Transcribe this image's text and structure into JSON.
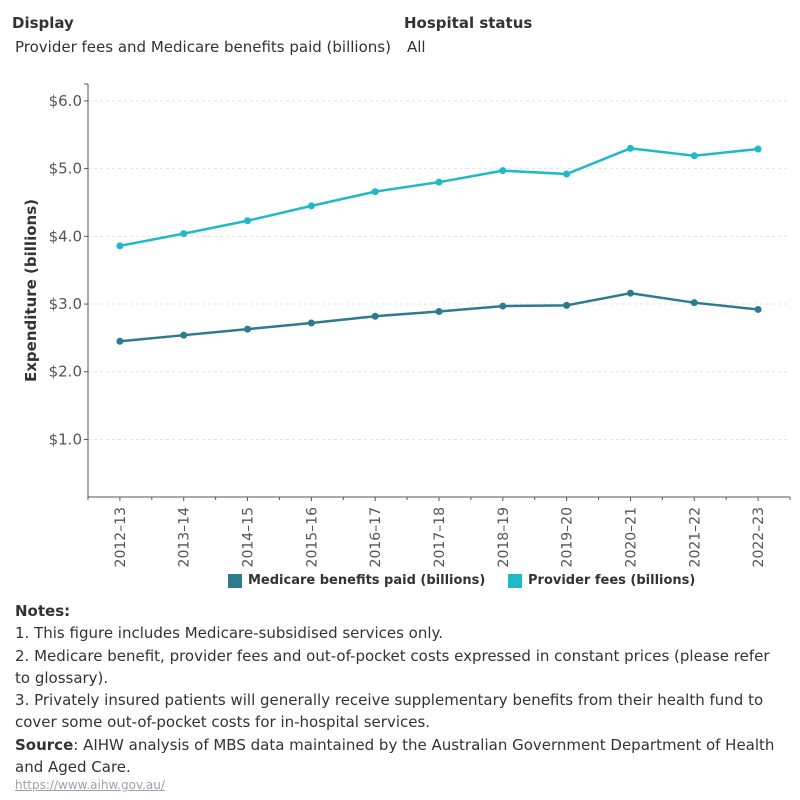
{
  "filters": {
    "display_label": "Display",
    "display_value": "Provider fees and Medicare benefits paid (billions)",
    "hospital_label": "Hospital status",
    "hospital_value": "All"
  },
  "colors": {
    "medicare": "#2e7a8f",
    "provider": "#1fbac6",
    "axis": "#555555",
    "grid": "#e3e3e3"
  },
  "chart_data": {
    "type": "line",
    "title": "",
    "xlabel": "",
    "ylabel": "Expenditure (billions)",
    "categories": [
      "2012–13",
      "2013–14",
      "2014–15",
      "2015–16",
      "2016–17",
      "2017–18",
      "2018–19",
      "2019–20",
      "2020–21",
      "2021–22",
      "2022–23"
    ],
    "yticks": [
      "$1.0",
      "$2.0",
      "$3.0",
      "$4.0",
      "$5.0",
      "$6.0"
    ],
    "ylim": [
      0.15,
      6.25
    ],
    "grid": true,
    "legend_position": "bottom",
    "series": [
      {
        "name": "Medicare benefits paid (billions)",
        "color": "#2e7a8f",
        "values": [
          2.45,
          2.54,
          2.63,
          2.72,
          2.82,
          2.89,
          2.97,
          2.98,
          3.16,
          3.02,
          2.92
        ]
      },
      {
        "name": "Provider fees (billions)",
        "color": "#1fbac6",
        "values": [
          3.86,
          4.04,
          4.23,
          4.45,
          4.66,
          4.8,
          4.97,
          4.92,
          5.3,
          5.19,
          5.29
        ]
      }
    ]
  },
  "notes": {
    "heading": "Notes:",
    "items": [
      "1. This figure includes Medicare-subsidised services only.",
      "2. Medicare benefit, provider fees and out-of-pocket costs expressed in constant prices (please refer to glossary).",
      "3. Privately insured patients will generally receive supplementary benefits from their health fund to cover some out-of-pocket costs for in-hospital services."
    ],
    "source_label": "Source",
    "source_text": ": AIHW analysis of MBS data maintained by the Australian Government Department of Health and Aged Care.",
    "link": "https://www.aihw.gov.au/"
  }
}
